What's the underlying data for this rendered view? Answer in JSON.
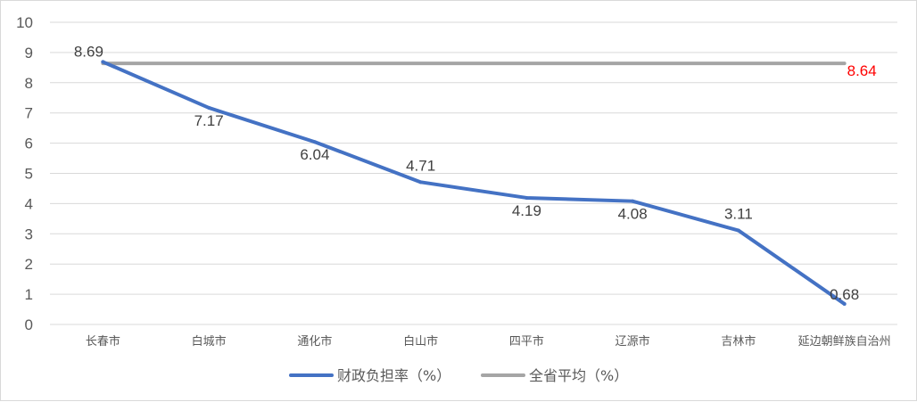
{
  "chart_data": {
    "type": "line",
    "title": "",
    "xlabel": "",
    "ylabel": "",
    "categories": [
      "长春市",
      "白城市",
      "通化市",
      "白山市",
      "四平市",
      "辽源市",
      "吉林市",
      "延边朝鲜族自治州"
    ],
    "series": [
      {
        "name": "财政负担率（%）",
        "values": [
          8.69,
          7.17,
          6.04,
          4.71,
          4.19,
          4.08,
          3.11,
          0.68
        ],
        "labels": [
          "8.69",
          "7.17",
          "6.04",
          "4.71",
          "4.19",
          "4.08",
          "3.11",
          "0.68"
        ],
        "color": "#4472c4"
      },
      {
        "name": "全省平均（%）",
        "values": [
          8.64,
          8.64,
          8.64,
          8.64,
          8.64,
          8.64,
          8.64,
          8.64
        ],
        "end_label": "8.64",
        "color": "#a5a5a5",
        "label_color": "#ff0000"
      }
    ],
    "ylim": [
      0,
      10
    ],
    "yticks": [
      "0",
      "1",
      "2",
      "3",
      "4",
      "5",
      "6",
      "7",
      "8",
      "9",
      "10"
    ],
    "grid": true,
    "legend": "bottom"
  }
}
